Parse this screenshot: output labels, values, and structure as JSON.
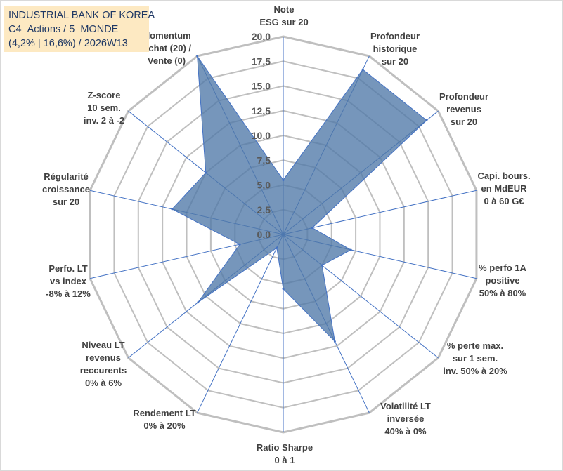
{
  "title": {
    "line1": "INDUSTRIAL BANK OF KOREA",
    "line2": "C4_Actions / 5_MONDE",
    "line3": "(4,2% | 16,6%) / 2026W13"
  },
  "colors": {
    "series_fill": "#4f79a8",
    "series_stroke": "#4472c4",
    "grid": "#bfbfbf",
    "axis": "#4472c4",
    "title_bg": "#fde9c2"
  },
  "chart_data": {
    "type": "radar",
    "rlim": [
      0,
      20
    ],
    "ticks": [
      "0,0",
      "2,5",
      "5,0",
      "7,5",
      "10,0",
      "12,5",
      "15,0",
      "17,5",
      "20,0"
    ],
    "axes": [
      [
        "Note",
        "ESG sur 20"
      ],
      [
        "Profondeur",
        "historique",
        "sur 20"
      ],
      [
        "Profondeur",
        "revenus",
        "sur 20"
      ],
      [
        "Capi. bours.",
        "en MdEUR",
        "0 à 60 G€"
      ],
      [
        "% perfo 1A",
        "positive",
        "50% à 80%"
      ],
      [
        "% perte max.",
        "sur 1 sem.",
        "inv. 50% à 20%"
      ],
      [
        "Volatilité LT",
        "inversée",
        "40% à 0%"
      ],
      [
        "Ratio Sharpe",
        "0 à 1"
      ],
      [
        "Rendement LT",
        "0% à 20%"
      ],
      [
        "Niveau LT",
        "revenus",
        "reccurents",
        "0% à 6%"
      ],
      [
        "Perfo. LT",
        "vs index",
        "-8% à 12%"
      ],
      [
        "Régularité",
        "croissance",
        "sur 20"
      ],
      [
        "Z-score",
        "10 sem.",
        "inv. 2 à -2"
      ],
      [
        "Momentum",
        "Achat (20) /",
        "Vente (0)"
      ]
    ],
    "values": [
      5.5,
      18.5,
      18.5,
      3.0,
      7.0,
      5.0,
      12.0,
      5.5,
      1.5,
      11.0,
      4.5,
      11.5,
      10.0,
      20.0
    ],
    "grid": true
  }
}
